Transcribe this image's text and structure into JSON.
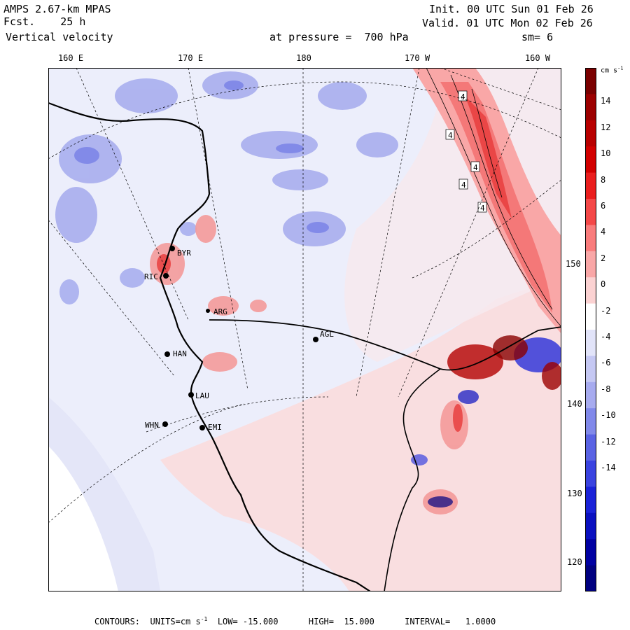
{
  "header": {
    "model": "AMPS 2.67-km MPAS",
    "forecast": "Fcst.    25 h",
    "field": "Vertical velocity",
    "pressure": "at pressure =  700 hPa",
    "init": "Init. 00 UTC Sun 01 Feb 26",
    "valid": "Valid. 01 UTC Mon 02 Feb 26",
    "smoothing": "sm= 6"
  },
  "longitude_labels": [
    "160 E",
    "170 E",
    "180",
    "170 W",
    "160 W"
  ],
  "latitude_labels": [
    "150 W",
    "140 W",
    "130 W",
    "120 W"
  ],
  "stations": [
    {
      "name": "BYR"
    },
    {
      "name": "RIC"
    },
    {
      "name": "ARG"
    },
    {
      "name": "AGL"
    },
    {
      "name": "HAN"
    },
    {
      "name": "LAU"
    },
    {
      "name": "WHN"
    },
    {
      "name": "EMI"
    }
  ],
  "contour_label_value": "4",
  "colorbar": {
    "units_label": "cm s",
    "units_exp": "-1",
    "ticks": [
      "14",
      "12",
      "10",
      "8",
      "6",
      "4",
      "2",
      "0",
      "-2",
      "-4",
      "-6",
      "-8",
      "-10",
      "-12",
      "-14"
    ],
    "colors": [
      "#7a0000",
      "#9c0000",
      "#b80000",
      "#d20000",
      "#ea1e1e",
      "#f44848",
      "#f97c7c",
      "#f9a7a7",
      "#fbd2d2",
      "#ffffff",
      "#e2e4f9",
      "#c5c8f3",
      "#a7abef",
      "#8189ea",
      "#5a63e4",
      "#3a43e0",
      "#1a22d8",
      "#0a10c0",
      "#0000a2",
      "#000080"
    ]
  },
  "footer": {
    "contours": "CONTOURS:  UNITS=cm s",
    "units_exp": "-1",
    "low": "LOW= -15.000",
    "high": "HIGH=  15.000",
    "interval": "INTERVAL=   1.0000"
  }
}
